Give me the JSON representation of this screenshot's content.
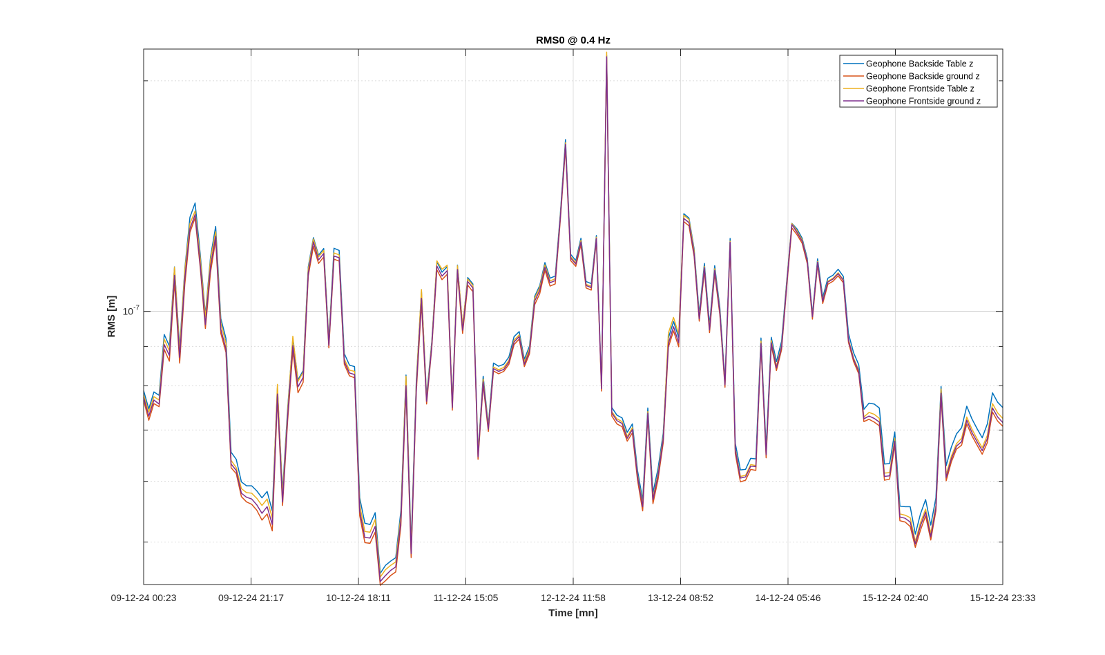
{
  "chart_data": {
    "type": "line",
    "title": "RMS0 @ 0.4 Hz",
    "xlabel": "Time [mn]",
    "ylabel": "RMS [m]",
    "yscale": "log",
    "ylim": [
      4.4e-08,
      2.2e-07
    ],
    "grid": true,
    "legend_position": "top-right",
    "x_tick_labels": [
      "09-12-24 00:23",
      "09-12-24 21:17",
      "10-12-24 18:11",
      "11-12-24 15:05",
      "12-12-24 11:58",
      "13-12-24 08:52",
      "14-12-24 05:46",
      "15-12-24 02:40",
      "15-12-24 23:33"
    ],
    "y_tick_labels": [
      {
        "base": "10",
        "exp": "-7"
      }
    ],
    "series": [
      {
        "name": "Geophone Backside Table z",
        "color": "#0072BD",
        "values": [
          7.88e-08,
          7.46e-08,
          7.85e-08,
          7.77e-08,
          9.33e-08,
          9.01e-08,
          1.143e-07,
          8.96e-08,
          1.136e-07,
          1.327e-07,
          1.385e-07,
          1.188e-07,
          9.9e-08,
          1.178e-07,
          1.291e-07,
          9.79e-08,
          9.22e-08,
          6.55e-08,
          6.41e-08,
          5.99e-08,
          5.92e-08,
          5.92e-08,
          5.83e-08,
          5.71e-08,
          5.82e-08,
          5.49e-08,
          7.95e-08,
          5.82e-08,
          7.48e-08,
          9.22e-08,
          8.14e-08,
          8.37e-08,
          1.143e-07,
          1.248e-07,
          1.184e-07,
          1.208e-07,
          9.18e-08,
          1.209e-07,
          1.201e-07,
          8.81e-08,
          8.51e-08,
          8.47e-08,
          5.71e-08,
          5.29e-08,
          5.27e-08,
          5.46e-08,
          4.55e-08,
          4.66e-08,
          4.72e-08,
          4.77e-08,
          5.49e-08,
          8.26e-08,
          4.96e-08,
          8.12e-08,
          1.063e-07,
          7.75e-08,
          9.12e-08,
          1.161e-07,
          1.125e-07,
          1.144e-07,
          7.57e-08,
          1.149e-07,
          9.56e-08,
          1.107e-07,
          1.086e-07,
          6.54e-08,
          8.23e-08,
          7.11e-08,
          8.56e-08,
          8.48e-08,
          8.53e-08,
          8.72e-08,
          9.27e-08,
          9.41e-08,
          8.66e-08,
          9.01e-08,
          1.046e-07,
          1.081e-07,
          1.158e-07,
          1.105e-07,
          1.112e-07,
          1.343e-07,
          1.676e-07,
          1.187e-07,
          1.165e-07,
          1.246e-07,
          1.094e-07,
          1.087e-07,
          1.256e-07,
          8.03e-08,
          2.16e-07,
          7.49e-08,
          7.32e-08,
          7.26e-08,
          6.95e-08,
          7.13e-08,
          6.2e-08,
          5.68e-08,
          7.48e-08,
          5.8e-08,
          6.24e-08,
          6.94e-08,
          9.23e-08,
          9.7e-08,
          9.25e-08,
          1.341e-07,
          1.324e-07,
          1.207e-07,
          9.93e-08,
          1.155e-07,
          9.6e-08,
          1.147e-07,
          1.012e-07,
          8.12e-08,
          1.245e-07,
          6.73e-08,
          6.21e-08,
          6.22e-08,
          6.43e-08,
          6.42e-08,
          9.23e-08,
          6.64e-08,
          9.25e-08,
          8.6e-08,
          9.14e-08,
          1.096e-07,
          1.303e-07,
          1.281e-07,
          1.246e-07,
          1.172e-07,
          9.92e-08,
          1.171e-07,
          1.043e-07,
          1.105e-07,
          1.115e-07,
          1.135e-07,
          1.111e-07,
          9.36e-08,
          8.83e-08,
          8.52e-08,
          7.45e-08,
          7.59e-08,
          7.57e-08,
          7.48e-08,
          6.32e-08,
          6.33e-08,
          6.96e-08,
          5.57e-08,
          5.56e-08,
          5.56e-08,
          5.12e-08,
          5.44e-08,
          5.68e-08,
          5.26e-08,
          5.71e-08,
          7.98e-08,
          6.29e-08,
          6.65e-08,
          6.92e-08,
          7.05e-08,
          7.52e-08,
          7.24e-08,
          7.03e-08,
          6.84e-08,
          7.13e-08,
          7.83e-08,
          7.61e-08,
          7.49e-08
        ]
      },
      {
        "name": "Geophone Backside ground z",
        "color": "#D95319",
        "values": [
          7.65e-08,
          7.21e-08,
          7.58e-08,
          7.51e-08,
          8.92e-08,
          8.61e-08,
          1.092e-07,
          8.56e-08,
          1.084e-07,
          1.268e-07,
          1.325e-07,
          1.14e-07,
          9.5e-08,
          1.125e-07,
          1.239e-07,
          9.36e-08,
          8.84e-08,
          6.25e-08,
          6.14e-08,
          5.73e-08,
          5.64e-08,
          5.6e-08,
          5.5e-08,
          5.34e-08,
          5.44e-08,
          5.17e-08,
          7.68e-08,
          5.58e-08,
          7.21e-08,
          8.88e-08,
          7.83e-08,
          8.08e-08,
          1.112e-07,
          1.216e-07,
          1.155e-07,
          1.178e-07,
          8.96e-08,
          1.17e-07,
          1.163e-07,
          8.53e-08,
          8.24e-08,
          8.19e-08,
          5.41e-08,
          4.99e-08,
          4.98e-08,
          5.15e-08,
          4.39e-08,
          4.45e-08,
          4.52e-08,
          4.57e-08,
          5.25e-08,
          7.9e-08,
          4.77e-08,
          7.85e-08,
          1.025e-07,
          7.57e-08,
          8.95e-08,
          1.133e-07,
          1.1e-07,
          1.118e-07,
          7.43e-08,
          1.122e-07,
          9.36e-08,
          1.082e-07,
          1.061e-07,
          6.41e-08,
          8.02e-08,
          6.97e-08,
          8.36e-08,
          8.29e-08,
          8.35e-08,
          8.53e-08,
          9.05e-08,
          9.2e-08,
          8.47e-08,
          8.8e-08,
          1.02e-07,
          1.055e-07,
          1.131e-07,
          1.079e-07,
          1.086e-07,
          1.317e-07,
          1.635e-07,
          1.165e-07,
          1.145e-07,
          1.222e-07,
          1.073e-07,
          1.066e-07,
          1.237e-07,
          7.87e-08,
          2.14e-07,
          7.3e-08,
          7.13e-08,
          7.07e-08,
          6.77e-08,
          6.94e-08,
          6.02e-08,
          5.49e-08,
          7.28e-08,
          5.61e-08,
          6.04e-08,
          6.74e-08,
          8.98e-08,
          9.43e-08,
          8.99e-08,
          1.31e-07,
          1.293e-07,
          1.18e-07,
          9.71e-08,
          1.13e-07,
          9.38e-08,
          1.121e-07,
          9.9e-08,
          7.96e-08,
          1.22e-07,
          6.52e-08,
          5.99e-08,
          6.02e-08,
          6.22e-08,
          6.2e-08,
          9e-08,
          6.44e-08,
          9.03e-08,
          8.37e-08,
          8.91e-08,
          1.075e-07,
          1.285e-07,
          1.259e-07,
          1.227e-07,
          1.154e-07,
          9.77e-08,
          1.151e-07,
          1.024e-07,
          1.085e-07,
          1.095e-07,
          1.113e-07,
          1.09e-07,
          9.11e-08,
          8.6e-08,
          8.29e-08,
          7.18e-08,
          7.23e-08,
          7.17e-08,
          7.09e-08,
          6.02e-08,
          6.04e-08,
          6.69e-08,
          5.33e-08,
          5.31e-08,
          5.24e-08,
          4.92e-08,
          5.18e-08,
          5.41e-08,
          5.03e-08,
          5.49e-08,
          7.73e-08,
          6.01e-08,
          6.36e-08,
          6.61e-08,
          6.69e-08,
          7.13e-08,
          6.88e-08,
          6.69e-08,
          6.51e-08,
          6.74e-08,
          7.39e-08,
          7.19e-08,
          7.08e-08
        ]
      },
      {
        "name": "Geophone Frontside Table z",
        "color": "#EDB120",
        "values": [
          7.78e-08,
          7.39e-08,
          7.74e-08,
          7.66e-08,
          9.2e-08,
          8.88e-08,
          1.142e-07,
          8.86e-08,
          1.13e-07,
          1.302e-07,
          1.352e-07,
          1.174e-07,
          9.83e-08,
          1.169e-07,
          1.271e-07,
          9.66e-08,
          9.08e-08,
          6.39e-08,
          6.25e-08,
          5.87e-08,
          5.8e-08,
          5.79e-08,
          5.7e-08,
          5.58e-08,
          5.69e-08,
          5.37e-08,
          8.03e-08,
          5.74e-08,
          7.42e-08,
          9.28e-08,
          8.1e-08,
          8.33e-08,
          1.136e-07,
          1.243e-07,
          1.178e-07,
          1.201e-07,
          9.12e-08,
          1.192e-07,
          1.185e-07,
          8.67e-08,
          8.38e-08,
          8.35e-08,
          5.59e-08,
          5.16e-08,
          5.15e-08,
          5.35e-08,
          4.5e-08,
          4.6e-08,
          4.66e-08,
          4.71e-08,
          5.41e-08,
          8.23e-08,
          4.89e-08,
          8.06e-08,
          1.068e-07,
          7.69e-08,
          9.07e-08,
          1.164e-07,
          1.135e-07,
          1.149e-07,
          7.55e-08,
          1.147e-07,
          9.58e-08,
          1.102e-07,
          1.081e-07,
          6.51e-08,
          8.16e-08,
          7.07e-08,
          8.46e-08,
          8.39e-08,
          8.45e-08,
          8.63e-08,
          9.17e-08,
          9.32e-08,
          8.59e-08,
          8.94e-08,
          1.04e-07,
          1.075e-07,
          1.15e-07,
          1.096e-07,
          1.103e-07,
          1.334e-07,
          1.66e-07,
          1.179e-07,
          1.157e-07,
          1.238e-07,
          1.085e-07,
          1.078e-07,
          1.25e-07,
          7.96e-08,
          2.18e-07,
          7.4e-08,
          7.24e-08,
          7.18e-08,
          6.87e-08,
          7.05e-08,
          6.12e-08,
          5.6e-08,
          7.4e-08,
          5.71e-08,
          6.15e-08,
          6.86e-08,
          9.37e-08,
          9.82e-08,
          9.34e-08,
          1.335e-07,
          1.318e-07,
          1.2e-07,
          9.83e-08,
          1.145e-07,
          9.5e-08,
          1.137e-07,
          1.003e-07,
          8.05e-08,
          1.235e-07,
          6.62e-08,
          6.09e-08,
          6.11e-08,
          6.31e-08,
          6.29e-08,
          9.15e-08,
          6.53e-08,
          9.16e-08,
          8.48e-08,
          9.03e-08,
          1.09e-07,
          1.302e-07,
          1.274e-07,
          1.24e-07,
          1.165e-07,
          9.86e-08,
          1.162e-07,
          1.034e-07,
          1.095e-07,
          1.105e-07,
          1.123e-07,
          1.1e-07,
          9.2e-08,
          8.69e-08,
          8.38e-08,
          7.28e-08,
          7.38e-08,
          7.34e-08,
          7.25e-08,
          6.15e-08,
          6.16e-08,
          6.83e-08,
          5.44e-08,
          5.42e-08,
          5.38e-08,
          5.01e-08,
          5.3e-08,
          5.52e-08,
          5.13e-08,
          5.58e-08,
          7.92e-08,
          6.12e-08,
          6.47e-08,
          6.72e-08,
          6.83e-08,
          7.28e-08,
          7.02e-08,
          6.82e-08,
          6.64e-08,
          6.89e-08,
          7.58e-08,
          7.37e-08,
          7.25e-08
        ]
      },
      {
        "name": "Geophone Frontside ground z",
        "color": "#7E2F8E",
        "values": [
          7.72e-08,
          7.3e-08,
          7.66e-08,
          7.57e-08,
          9.05e-08,
          8.76e-08,
          1.114e-07,
          8.71e-08,
          1.103e-07,
          1.282e-07,
          1.338e-07,
          1.151e-07,
          9.61e-08,
          1.145e-07,
          1.253e-07,
          9.48e-08,
          8.93e-08,
          6.32e-08,
          6.2e-08,
          5.79e-08,
          5.72e-08,
          5.69e-08,
          5.59e-08,
          5.45e-08,
          5.56e-08,
          5.27e-08,
          7.8e-08,
          5.64e-08,
          7.32e-08,
          9.02e-08,
          7.97e-08,
          8.2e-08,
          1.122e-07,
          1.232e-07,
          1.167e-07,
          1.19e-07,
          9.03e-08,
          1.181e-07,
          1.175e-07,
          8.6e-08,
          8.31e-08,
          8.27e-08,
          5.49e-08,
          5.07e-08,
          5.06e-08,
          5.24e-08,
          4.44e-08,
          4.52e-08,
          4.59e-08,
          4.64e-08,
          5.33e-08,
          8e-08,
          4.83e-08,
          7.95e-08,
          1.04e-07,
          7.63e-08,
          9e-08,
          1.146e-07,
          1.112e-07,
          1.13e-07,
          7.49e-08,
          1.134e-07,
          9.45e-08,
          1.094e-07,
          1.073e-07,
          6.46e-08,
          8.09e-08,
          7.02e-08,
          8.42e-08,
          8.35e-08,
          8.4e-08,
          8.59e-08,
          9.12e-08,
          9.27e-08,
          8.53e-08,
          8.87e-08,
          1.031e-07,
          1.066e-07,
          1.142e-07,
          1.09e-07,
          1.097e-07,
          1.328e-07,
          1.652e-07,
          1.174e-07,
          1.153e-07,
          1.232e-07,
          1.081e-07,
          1.074e-07,
          1.245e-07,
          7.93e-08,
          2.15e-07,
          7.37e-08,
          7.2e-08,
          7.14e-08,
          6.83e-08,
          7.01e-08,
          6.09e-08,
          5.56e-08,
          7.36e-08,
          5.68e-08,
          6.11e-08,
          6.81e-08,
          9.08e-08,
          9.55e-08,
          9.1e-08,
          1.322e-07,
          1.306e-07,
          1.19e-07,
          9.78e-08,
          1.14e-07,
          9.46e-08,
          1.131e-07,
          9.98e-08,
          8.02e-08,
          1.231e-07,
          6.59e-08,
          6.06e-08,
          6.08e-08,
          6.28e-08,
          6.27e-08,
          9.08e-08,
          6.5e-08,
          9.1e-08,
          8.44e-08,
          8.98e-08,
          1.083e-07,
          1.298e-07,
          1.268e-07,
          1.235e-07,
          1.162e-07,
          9.84e-08,
          1.159e-07,
          1.031e-07,
          1.092e-07,
          1.102e-07,
          1.12e-07,
          1.098e-07,
          9.17e-08,
          8.66e-08,
          8.35e-08,
          7.24e-08,
          7.3e-08,
          7.25e-08,
          7.17e-08,
          6.09e-08,
          6.1e-08,
          6.77e-08,
          5.39e-08,
          5.37e-08,
          5.31e-08,
          4.97e-08,
          5.25e-08,
          5.47e-08,
          5.08e-08,
          5.54e-08,
          7.82e-08,
          6.07e-08,
          6.42e-08,
          6.67e-08,
          6.76e-08,
          7.21e-08,
          6.95e-08,
          6.76e-08,
          6.58e-08,
          6.82e-08,
          7.48e-08,
          7.28e-08,
          7.16e-08
        ]
      }
    ]
  }
}
